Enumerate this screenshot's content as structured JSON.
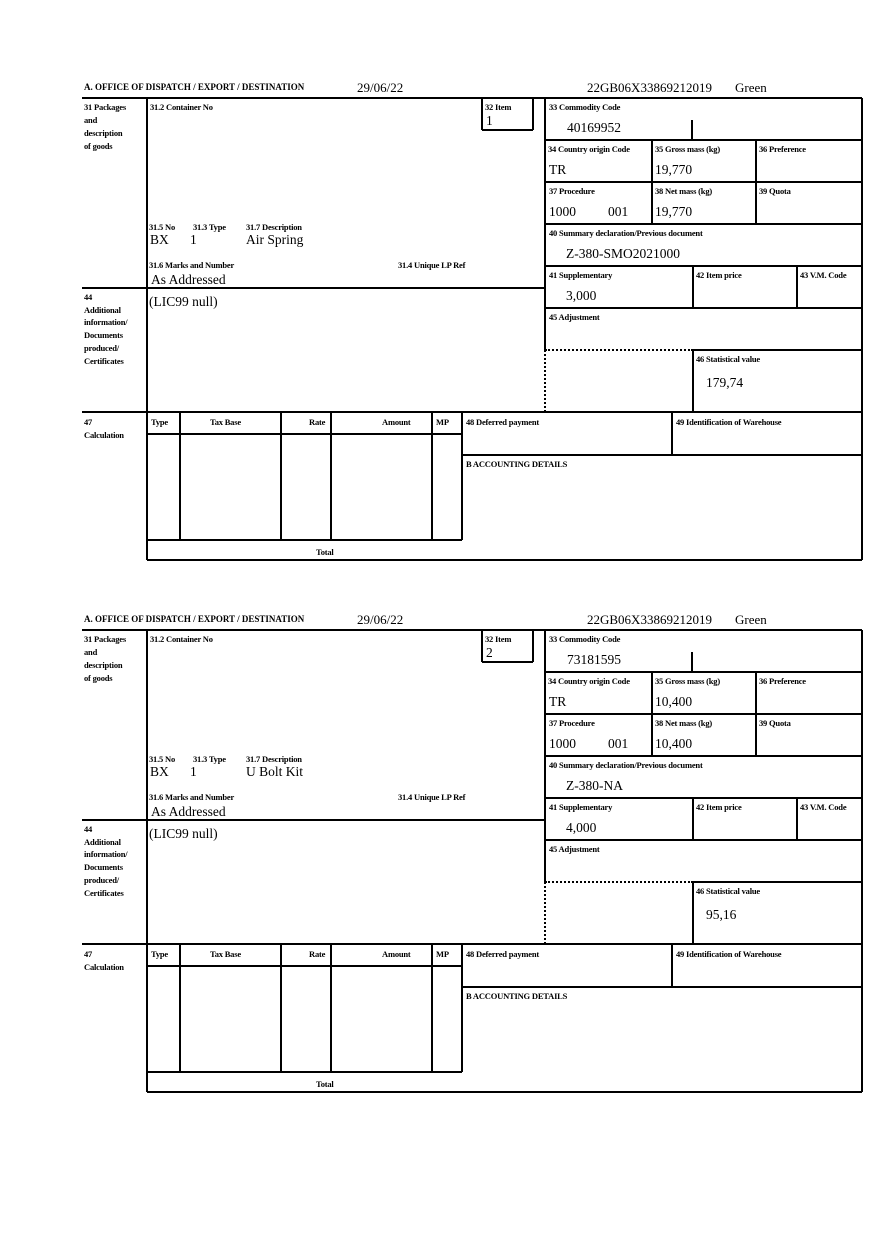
{
  "labels": {
    "office": "A. OFFICE OF DISPATCH / EXPORT / DESTINATION",
    "packages": [
      "31 Packages",
      "and",
      "description",
      "of goods"
    ],
    "container_no": "31.2 Container No",
    "no": "31.5 No",
    "type": "31.3 Type",
    "description": "31.7 Description",
    "marks": "31.6 Marks and Number",
    "unique_lp": "31.4 Unique LP Ref",
    "item": "32 Item",
    "commodity_code": "33 Commodity Code",
    "country_origin": "34 Country origin Code",
    "gross_mass": "35 Gross mass (kg)",
    "preference": "36 Preference",
    "procedure": "37 Procedure",
    "net_mass": "38 Net mass (kg)",
    "quota": "39 Quota",
    "summary_declaration": "40 Summary declaration/Previous document",
    "supplementary": "41 Supplementary",
    "item_price": "42 Item price",
    "vm_code": "43 V.M. Code",
    "additional_info": [
      "44",
      "Additional",
      "information/",
      "Documents",
      "produced/",
      "Certificates"
    ],
    "adjustment": "45 Adjustment",
    "statistical_value": "46 Statistical value",
    "calculation": [
      "47",
      "Calculation"
    ],
    "calc_headers": [
      "Type",
      "Tax Base",
      "Rate",
      "Amount",
      "MP"
    ],
    "total": "Total",
    "deferred_payment": "48 Deferred payment",
    "warehouse_id": "49 Identification of Warehouse",
    "accounting": "B ACCOUNTING DETAILS"
  },
  "forms": [
    {
      "date": "29/06/22",
      "reference": "22GB06X33869212019",
      "route": "Green",
      "item": "1",
      "package_kind": "BX",
      "package_count": "1",
      "description": "Air Spring",
      "marks": "As Addressed",
      "commodity_code": "40169952",
      "country_origin": "TR",
      "gross_mass": "19,770",
      "procedure": "1000",
      "procedure_additional": "001",
      "net_mass": "19,770",
      "summary_declaration": "Z-380-SMO2021000",
      "supplementary": "3,000",
      "additional_info": "(LIC99 null)",
      "statistical_value": "179,74"
    },
    {
      "date": "29/06/22",
      "reference": "22GB06X33869212019",
      "route": "Green",
      "item": "2",
      "package_kind": "BX",
      "package_count": "1",
      "description": "U Bolt Kit",
      "marks": "As Addressed",
      "commodity_code": "73181595",
      "country_origin": "TR",
      "gross_mass": "10,400",
      "procedure": "1000",
      "procedure_additional": "001",
      "net_mass": "10,400",
      "summary_declaration": "Z-380-NA",
      "supplementary": "4,000",
      "additional_info": "(LIC99 null)",
      "statistical_value": "95,16"
    }
  ]
}
